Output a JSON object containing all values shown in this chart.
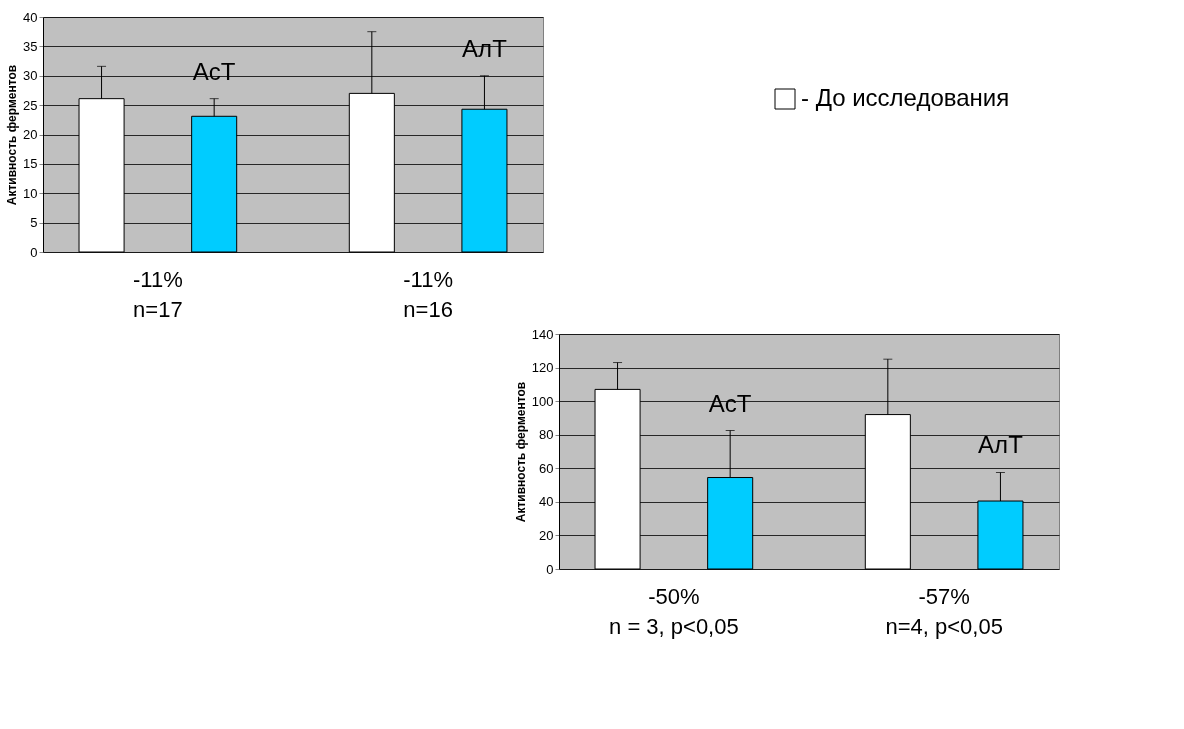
{
  "chart_data": [
    {
      "type": "bar",
      "ylabel": "Активность ферментов",
      "categories": [
        null,
        null
      ],
      "series": [
        {
          "name": "- До исследования",
          "color": "#ffffff",
          "values": [
            26.1,
            27.0
          ],
          "errors": [
            [
              26.1,
              31.6
            ],
            [
              27.0,
              37.5
            ]
          ]
        },
        {
          "color": "#00ccff",
          "values": [
            23.1,
            24.3
          ],
          "errors": [
            [
              23.1,
              26.1
            ],
            [
              24.3,
              30.0
            ]
          ]
        }
      ],
      "ylim": [
        0,
        40
      ],
      "yticks": [
        0,
        5,
        10,
        15,
        20,
        25,
        30,
        35,
        40
      ],
      "grid": "y",
      "legend": "right",
      "annotations": [
        "АсТ",
        "АлТ",
        "-11%",
        "n=17",
        "-11%",
        "n=16"
      ]
    },
    {
      "type": "bar",
      "ylabel": "Активность ферментов",
      "categories": [
        null,
        null
      ],
      "series": [
        {
          "color": "#ffffff",
          "values": [
            107,
            92
          ],
          "errors": [
            [
              107,
              123
            ],
            [
              92,
              125
            ]
          ]
        },
        {
          "color": "#00ccff",
          "values": [
            54.5,
            40.5
          ],
          "errors": [
            [
              54.5,
              82.5
            ],
            [
              40.5,
              57.5
            ]
          ]
        }
      ],
      "ylim": [
        0,
        140
      ],
      "yticks": [
        0,
        20,
        40,
        60,
        80,
        100,
        120,
        140
      ],
      "grid": "y",
      "annotations": [
        "АсТ",
        "АлТ",
        "-50%",
        "n = 3, p<0,05",
        "-57%",
        "n=4, p<0,05"
      ]
    }
  ]
}
